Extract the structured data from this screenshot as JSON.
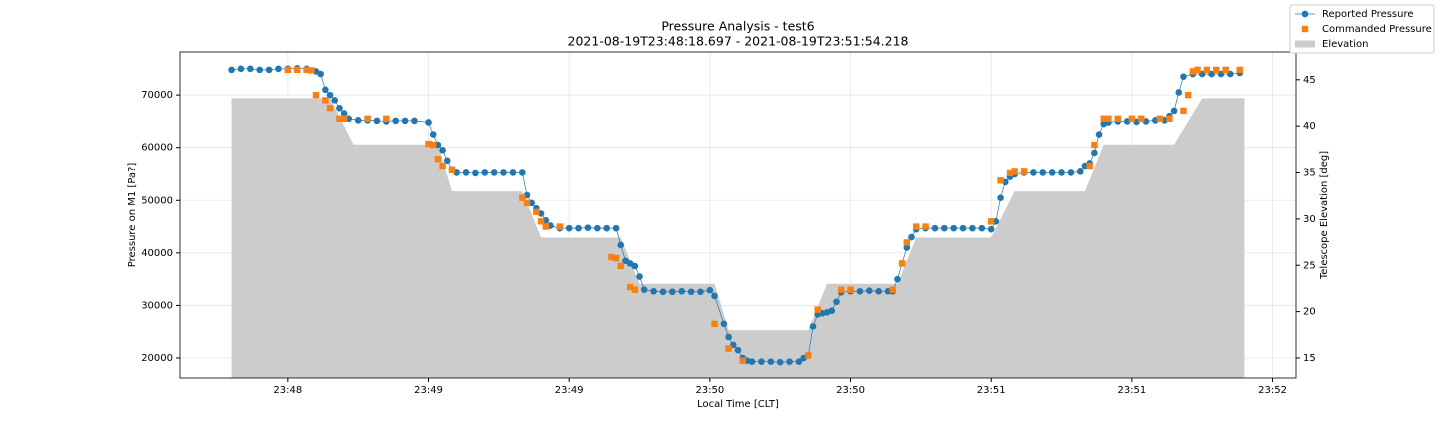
{
  "chart_data": {
    "type": "line",
    "title": "Pressure Analysis - test6",
    "subtitle": "2021-08-19T23:48:18.697 - 2021-08-19T23:51:54.218",
    "x_label": "Local Time [CLT]",
    "y_label": "Pressure on M1 [Pa?]",
    "y2_label": "Telescope Elevation [deg]",
    "xlim": [
      "23:48:07",
      "23:52:05"
    ],
    "xticks": [
      {
        "value": "23:48:30",
        "label": "23:48"
      },
      {
        "value": "23:49:00",
        "label": "23:49"
      },
      {
        "value": "23:49:30",
        "label": "23:49"
      },
      {
        "value": "23:50:00",
        "label": "23:50"
      },
      {
        "value": "23:50:30",
        "label": "23:50"
      },
      {
        "value": "23:51:00",
        "label": "23:51"
      },
      {
        "value": "23:51:30",
        "label": "23:51"
      },
      {
        "value": "23:52:00",
        "label": "23:52"
      }
    ],
    "ylim": [
      16200,
      78200
    ],
    "yticks": [
      20000,
      30000,
      40000,
      50000,
      60000,
      70000
    ],
    "y2lim": [
      12.84,
      48.0
    ],
    "y2ticks": [
      15,
      20,
      25,
      30,
      35,
      40,
      45
    ],
    "grid": true,
    "legend": "upper right",
    "series": [
      {
        "name": "Elevation",
        "kind": "area",
        "axis": "y2",
        "color": "#cccccc",
        "x": [
          "23:48:18",
          "23:48:39",
          "23:48:44",
          "23:49:02",
          "23:49:05",
          "23:49:20",
          "23:49:24",
          "23:49:41",
          "23:49:45",
          "23:50:01",
          "23:50:04",
          "23:50:21",
          "23:50:25",
          "23:50:40",
          "23:50:44",
          "23:51:00",
          "23:51:05",
          "23:51:20",
          "23:51:24",
          "23:51:39",
          "23:51:45",
          "23:51:54"
        ],
        "values": [
          43,
          43,
          38,
          38,
          33,
          33,
          28,
          28,
          23,
          23,
          18,
          18,
          23,
          23,
          28,
          28,
          33,
          33,
          38,
          38,
          43,
          43
        ]
      },
      {
        "name": "Reported Pressure",
        "kind": "line",
        "color": "#1f77b4",
        "x": [
          "23:48:18",
          "23:48:20",
          "23:48:22",
          "23:48:24",
          "23:48:26",
          "23:48:28",
          "23:48:30",
          "23:48:32",
          "23:48:34",
          "23:48:36",
          "23:48:37",
          "23:48:38",
          "23:48:39",
          "23:48:40",
          "23:48:41",
          "23:48:42",
          "23:48:43",
          "23:48:45",
          "23:48:47",
          "23:48:49",
          "23:48:51",
          "23:48:53",
          "23:48:55",
          "23:48:57",
          "23:49:00",
          "23:49:01",
          "23:49:02",
          "23:49:03",
          "23:49:04",
          "23:49:05",
          "23:49:06",
          "23:49:08",
          "23:49:10",
          "23:49:12",
          "23:49:14",
          "23:49:16",
          "23:49:18",
          "23:49:20",
          "23:49:21",
          "23:49:22",
          "23:49:23",
          "23:49:24",
          "23:49:25",
          "23:49:26",
          "23:49:28",
          "23:49:30",
          "23:49:32",
          "23:49:34",
          "23:49:36",
          "23:49:38",
          "23:49:40",
          "23:49:41",
          "23:49:42",
          "23:49:43",
          "23:49:44",
          "23:49:45",
          "23:49:46",
          "23:49:48",
          "23:49:50",
          "23:49:52",
          "23:49:54",
          "23:49:56",
          "23:49:58",
          "23:50:00",
          "23:50:01",
          "23:50:03",
          "23:50:04",
          "23:50:05",
          "23:50:06",
          "23:50:07",
          "23:50:08",
          "23:50:09",
          "23:50:11",
          "23:50:13",
          "23:50:15",
          "23:50:17",
          "23:50:19",
          "23:50:20",
          "23:50:21",
          "23:50:22",
          "23:50:23",
          "23:50:24",
          "23:50:25",
          "23:50:26",
          "23:50:27",
          "23:50:28",
          "23:50:30",
          "23:50:32",
          "23:50:34",
          "23:50:36",
          "23:50:38",
          "23:50:39",
          "23:50:40",
          "23:50:41",
          "23:50:42",
          "23:50:43",
          "23:50:44",
          "23:50:46",
          "23:50:48",
          "23:50:50",
          "23:50:52",
          "23:50:54",
          "23:50:56",
          "23:50:58",
          "23:51:00",
          "23:51:01",
          "23:51:02",
          "23:51:03",
          "23:51:04",
          "23:51:05",
          "23:51:07",
          "23:51:09",
          "23:51:11",
          "23:51:13",
          "23:51:15",
          "23:51:17",
          "23:51:19",
          "23:51:20",
          "23:51:21",
          "23:51:22",
          "23:51:23",
          "23:51:24",
          "23:51:25",
          "23:51:27",
          "23:51:29",
          "23:51:31",
          "23:51:33",
          "23:51:35",
          "23:51:37",
          "23:51:38",
          "23:51:39",
          "23:51:40",
          "23:51:41",
          "23:51:43",
          "23:51:45",
          "23:51:47",
          "23:51:49",
          "23:51:51",
          "23:51:53"
        ],
        "values": [
          74800,
          75000,
          75000,
          74800,
          74800,
          75000,
          75000,
          75100,
          75000,
          74500,
          74000,
          71000,
          70000,
          69000,
          67500,
          66500,
          65500,
          65200,
          65200,
          65100,
          65000,
          65100,
          65100,
          65100,
          64800,
          62500,
          60500,
          59500,
          57500,
          55800,
          55300,
          55300,
          55200,
          55300,
          55300,
          55300,
          55300,
          55300,
          51000,
          49500,
          48500,
          47500,
          46200,
          45200,
          44700,
          44700,
          44700,
          44800,
          44700,
          44700,
          44700,
          41500,
          38500,
          38000,
          37500,
          35500,
          33000,
          32700,
          32600,
          32600,
          32700,
          32600,
          32600,
          32900,
          31800,
          26500,
          24000,
          22500,
          21500,
          20000,
          19500,
          19300,
          19300,
          19300,
          19200,
          19300,
          19300,
          20000,
          20500,
          26000,
          28300,
          28500,
          28700,
          29000,
          30700,
          32500,
          32700,
          32700,
          32800,
          32700,
          32700,
          32700,
          35000,
          38000,
          41000,
          43000,
          44500,
          44700,
          44700,
          44700,
          44700,
          44700,
          44700,
          44700,
          44500,
          46000,
          50500,
          53500,
          54500,
          55000,
          55300,
          55300,
          55300,
          55300,
          55300,
          55300,
          55500,
          56500,
          57000,
          59000,
          62500,
          64500,
          64800,
          65000,
          65000,
          64900,
          65000,
          65200,
          65200,
          66000,
          67000,
          70500,
          73500,
          74000,
          74000,
          74000,
          74000,
          74000,
          74200
        ]
      },
      {
        "name": "Commanded Pressure",
        "kind": "scatter",
        "color": "#ff7f0e",
        "x": [
          "23:48:30",
          "23:48:32",
          "23:48:34",
          "23:48:35",
          "23:48:36",
          "23:48:38",
          "23:48:39",
          "23:48:41",
          "23:48:42",
          "23:48:47",
          "23:48:51",
          "23:49:00",
          "23:49:01",
          "23:49:02",
          "23:49:03",
          "23:49:05",
          "23:49:20",
          "23:49:21",
          "23:49:23",
          "23:49:24",
          "23:49:25",
          "23:49:28",
          "23:49:39",
          "23:49:40",
          "23:49:41",
          "23:49:43",
          "23:49:44",
          "23:50:01",
          "23:50:04",
          "23:50:07",
          "23:50:21",
          "23:50:23",
          "23:50:28",
          "23:50:30",
          "23:50:39",
          "23:50:41",
          "23:50:42",
          "23:50:44",
          "23:50:46",
          "23:51:00",
          "23:51:02",
          "23:51:04",
          "23:51:05",
          "23:51:07",
          "23:51:21",
          "23:51:22",
          "23:51:24",
          "23:51:25",
          "23:51:27",
          "23:51:30",
          "23:51:32",
          "23:51:36",
          "23:51:38",
          "23:51:41",
          "23:51:42",
          "23:51:43",
          "23:51:44",
          "23:51:46",
          "23:51:48",
          "23:51:50",
          "23:51:53"
        ],
        "values": [
          74800,
          74800,
          74800,
          74700,
          70000,
          69000,
          67500,
          65500,
          65500,
          65500,
          65500,
          60700,
          60500,
          57800,
          56500,
          55800,
          50500,
          49500,
          47800,
          46000,
          45000,
          45000,
          39200,
          39000,
          37500,
          33500,
          33000,
          26500,
          21800,
          19500,
          20500,
          29200,
          33000,
          33000,
          33000,
          38000,
          42000,
          45000,
          45000,
          46000,
          53800,
          55200,
          55500,
          55500,
          56500,
          60500,
          65500,
          65500,
          65500,
          65500,
          65500,
          65500,
          65500,
          67000,
          70000,
          74500,
          74800,
          74800,
          74800,
          74800,
          74800
        ]
      }
    ]
  }
}
